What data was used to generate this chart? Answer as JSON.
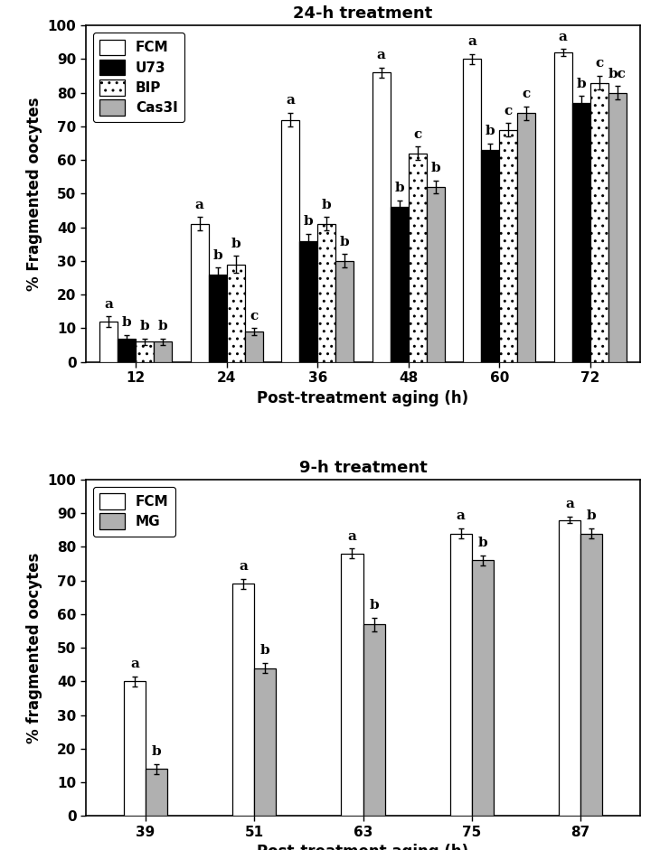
{
  "panel1": {
    "title": "24-h treatment",
    "xlabel": "Post-treatment aging (h)",
    "ylabel": "% Fragmented oocytes",
    "xticks": [
      12,
      24,
      36,
      48,
      60,
      72
    ],
    "ylim": [
      0,
      100
    ],
    "yticks": [
      0,
      10,
      20,
      30,
      40,
      50,
      60,
      70,
      80,
      90,
      100
    ],
    "series": {
      "FCM": {
        "values": [
          12,
          41,
          72,
          86,
          90,
          92
        ],
        "errors": [
          1.5,
          2.0,
          2.0,
          1.5,
          1.5,
          1.0
        ],
        "color": "white",
        "hatch": null,
        "edgecolor": "black"
      },
      "U73": {
        "values": [
          7,
          26,
          36,
          46,
          63,
          77
        ],
        "errors": [
          1.0,
          2.0,
          2.0,
          2.0,
          2.0,
          2.0
        ],
        "color": "black",
        "hatch": null,
        "edgecolor": "black"
      },
      "BIP": {
        "values": [
          6,
          29,
          41,
          62,
          69,
          83
        ],
        "errors": [
          1.0,
          2.5,
          2.0,
          2.0,
          2.0,
          2.0
        ],
        "color": "white",
        "hatch": "..",
        "edgecolor": "black"
      },
      "Cas3I": {
        "values": [
          6,
          9,
          30,
          52,
          74,
          80
        ],
        "errors": [
          1.0,
          1.0,
          2.0,
          2.0,
          2.0,
          2.0
        ],
        "color": "#b0b0b0",
        "hatch": null,
        "edgecolor": "black"
      }
    },
    "labels": {
      "FCM": [
        "a",
        "a",
        "a",
        "a",
        "a",
        "a"
      ],
      "U73": [
        "b",
        "b",
        "b",
        "b",
        "b",
        "b"
      ],
      "BIP": [
        "b",
        "b",
        "b",
        "c",
        "c",
        "c"
      ],
      "Cas3I": [
        "b",
        "c",
        "b",
        "b",
        "c",
        "bc"
      ]
    }
  },
  "panel2": {
    "title": "9-h treatment",
    "xlabel": "Post-treatment aging (h)",
    "ylabel": "% fragmented oocytes",
    "xticks": [
      39,
      51,
      63,
      75,
      87
    ],
    "ylim": [
      0,
      100
    ],
    "yticks": [
      0,
      10,
      20,
      30,
      40,
      50,
      60,
      70,
      80,
      90,
      100
    ],
    "series": {
      "FCM": {
        "values": [
          40,
          69,
          78,
          84,
          88
        ],
        "errors": [
          1.5,
          1.5,
          1.5,
          1.5,
          1.0
        ],
        "color": "white",
        "hatch": null,
        "edgecolor": "black"
      },
      "MG": {
        "values": [
          14,
          44,
          57,
          76,
          84
        ],
        "errors": [
          1.5,
          1.5,
          2.0,
          1.5,
          1.5
        ],
        "color": "#b0b0b0",
        "hatch": null,
        "edgecolor": "black"
      }
    },
    "labels": {
      "FCM": [
        "a",
        "a",
        "a",
        "a",
        "a"
      ],
      "MG": [
        "b",
        "b",
        "b",
        "b",
        "b"
      ]
    }
  },
  "bar_width": 0.2,
  "letter_fontsize": 11,
  "tick_fontsize": 11,
  "label_fontsize": 12,
  "title_fontsize": 13
}
